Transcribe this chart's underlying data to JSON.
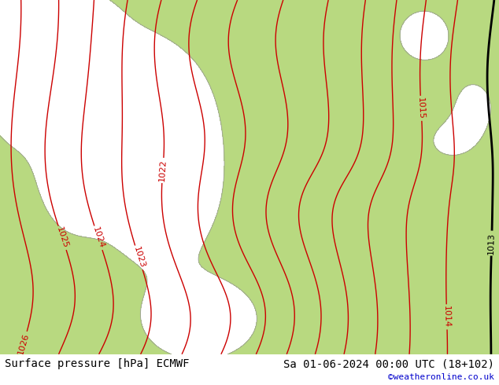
{
  "title_left": "Surface pressure [hPa] ECMWF",
  "title_right": "Sa 01-06-2024 00:00 UTC (18+102)",
  "copyright": "©weatheronline.co.uk",
  "bg_green": "#b8d980",
  "sea_gray": "#c8c8c8",
  "red_color": "#cc0000",
  "black_color": "#000000",
  "blue_color": "#0000cc",
  "gray_coast": "#999999",
  "white_bar": "#ffffff",
  "font_size_title": 10,
  "font_size_label": 8,
  "font_size_copyright": 8
}
